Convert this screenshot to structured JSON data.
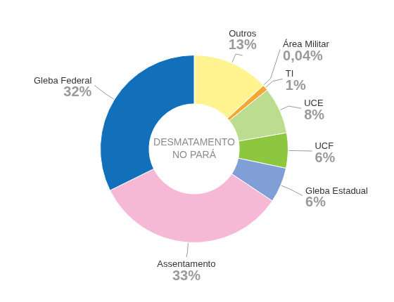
{
  "chart_data": {
    "type": "doughnut",
    "title": "DESMATAMENTO NO PARÁ",
    "categories": [
      "Outros",
      "Área Militar",
      "TI",
      "UCE",
      "UCF",
      "Gleba Estadual",
      "Assentamento",
      "Gleba Federal"
    ],
    "values": [
      13,
      0.04,
      1,
      8,
      6,
      6,
      33,
      32
    ],
    "value_labels": [
      "13%",
      "0,04%",
      "1%",
      "8%",
      "6%",
      "6%",
      "33%",
      "32%"
    ],
    "colors": [
      "#fff48f",
      "#e8c15a",
      "#f5a733",
      "#bcdd8f",
      "#8dc63f",
      "#7f9fd6",
      "#f5b8d5",
      "#1170b9"
    ],
    "data_labels": true
  }
}
